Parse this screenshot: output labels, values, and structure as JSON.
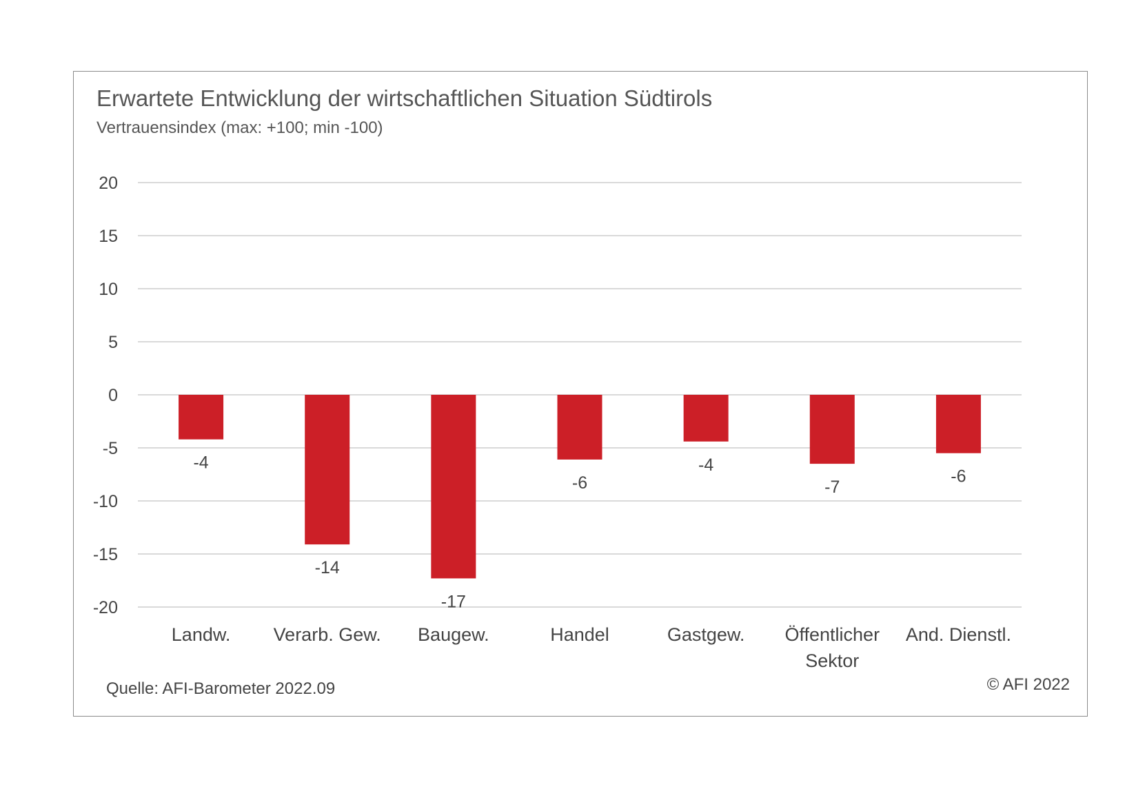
{
  "chart_data": {
    "type": "bar",
    "title": "Erwartete Entwicklung der wirtschaftlichen Situation Südtirols",
    "subtitle": "Vertrauensindex (max: +100; min -100)",
    "categories": [
      "Landw.",
      "Verarb. Gew.",
      "Baugew.",
      "Handel",
      "Gastgew.",
      "Öffentlicher Sektor",
      "And. Dienstl."
    ],
    "category_lines": [
      [
        "Landw."
      ],
      [
        "Verarb. Gew."
      ],
      [
        "Baugew."
      ],
      [
        "Handel"
      ],
      [
        "Gastgew."
      ],
      [
        "Öffentlicher",
        "Sektor"
      ],
      [
        "And. Dienstl."
      ]
    ],
    "values": [
      -4.2,
      -14.1,
      -17.3,
      -6.1,
      -4.4,
      -6.5,
      -5.5
    ],
    "data_labels": [
      "-4",
      "-14",
      "-17",
      "-6",
      "-4",
      "-7",
      "-6"
    ],
    "yticks": [
      "20",
      "15",
      "10",
      "5",
      "0",
      "-5",
      "-10",
      "-15",
      "-20"
    ],
    "ylim": [
      -20,
      20
    ],
    "grid": true,
    "legend": "none",
    "bar_color": "#cc1f27",
    "grid_color": "#d9d9d9"
  },
  "footer": {
    "source": "Quelle: AFI-Barometer 2022.09",
    "copyright": "© AFI 2022"
  }
}
